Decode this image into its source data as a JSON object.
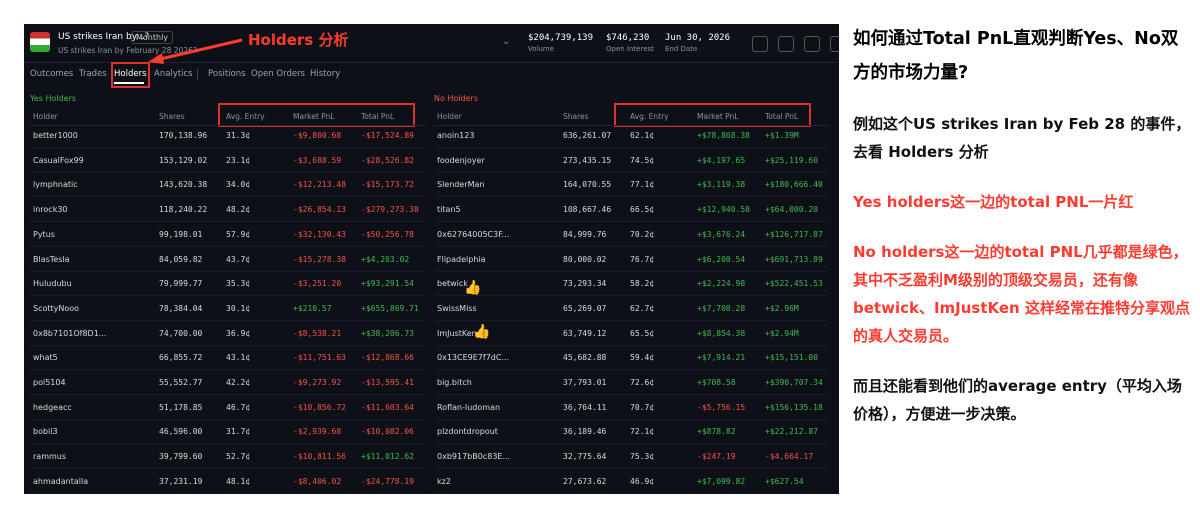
{
  "header": {
    "title": "US strikes Iran by...?",
    "badge": "Monthly",
    "subtitle": "US strikes Iran by February 28 2026?",
    "stats": [
      {
        "value": "$204,739,139",
        "label": "Volume"
      },
      {
        "value": "$746,230",
        "label": "Open Interest"
      },
      {
        "value": "Jun 30, 2026",
        "label": "End Date"
      }
    ]
  },
  "annotation": "Holders 分析",
  "tabs": [
    "Outcomes",
    "Trades",
    "Holders",
    "Analytics",
    "Positions",
    "Open Orders",
    "History"
  ],
  "yes_holders": {
    "title": "Yes Holders",
    "columns": [
      "Holder",
      "Shares",
      "Avg. Entry",
      "Market PnL",
      "Total PnL"
    ],
    "rows": [
      [
        "better1000",
        "170,138.96",
        "31.3¢",
        "-$9,800.68",
        "-$17,524.89"
      ],
      [
        "CasualFox99",
        "153,129.02",
        "23.1¢",
        "-$3,688.59",
        "-$28,526.82"
      ],
      [
        "lymphnatic",
        "143,620.38",
        "34.0¢",
        "-$12,213.48",
        "-$15,173.72"
      ],
      [
        "inrock30",
        "118,240.22",
        "48.2¢",
        "-$26,854.13",
        "-$279,273.38"
      ],
      [
        "Pytus",
        "99,198.01",
        "57.9¢",
        "-$32,130.43",
        "-$50,256.78"
      ],
      [
        "BlasTesla",
        "84,059.82",
        "43.7¢",
        "-$15,278.38",
        "+$4,203.02"
      ],
      [
        "Huludubu",
        "79,999.77",
        "35.3¢",
        "-$3,251.20",
        "+$93,291.54"
      ],
      [
        "ScottyNooo",
        "78,384.04",
        "30.1¢",
        "+$210.57",
        "+$655,869.71"
      ],
      [
        "0x8b7101Of8D1...",
        "74,700.00",
        "36.9¢",
        "-$8,538.21",
        "+$38,206.73"
      ],
      [
        "what5",
        "66,855.72",
        "43.1¢",
        "-$11,751.63",
        "-$12,868.66"
      ],
      [
        "pol5104",
        "55,552.77",
        "42.2¢",
        "-$9,273.92",
        "-$13,595.41"
      ],
      [
        "hedgeacc",
        "51,178.85",
        "46.7¢",
        "-$10,856.72",
        "-$11,603.64"
      ],
      [
        "bobil3",
        "46,596.00",
        "31.7¢",
        "-$2,939.68",
        "-$10,082.06"
      ],
      [
        "rammus",
        "39,799.60",
        "52.7¢",
        "-$10,811.56",
        "+$11,012.62"
      ],
      [
        "ahmadantalla",
        "37,231.19",
        "48.1¢",
        "-$8,406.02",
        "-$24,778.19"
      ]
    ]
  },
  "no_holders": {
    "title": "No Holders",
    "columns": [
      "Holder",
      "Shares",
      "Avg. Entry",
      "Market PnL",
      "Total PnL"
    ],
    "rows": [
      [
        "anoin123",
        "636,261.07",
        "62.1¢",
        "+$78,868.38",
        "+$1.39M"
      ],
      [
        "foodenjoyer",
        "273,435.15",
        "74.5¢",
        "+$4,197.65",
        "+$25,119.60"
      ],
      [
        "SlenderMan",
        "164,070.55",
        "77.1¢",
        "+$3,119.38",
        "+$180,666.40"
      ],
      [
        "titan5",
        "108,667.46",
        "66.5¢",
        "+$12,940.58",
        "+$64,000.20"
      ],
      [
        "0x62764005C3F...",
        "84,999.76",
        "70.2¢",
        "+$3,676.24",
        "+$126,717.87"
      ],
      [
        "Flipadelphia",
        "80,000.02",
        "76.7¢",
        "+$6,200.54",
        "+$691,713.89"
      ],
      [
        "betwick",
        "73,293.34",
        "58.2¢",
        "+$2,224.98",
        "+$522,451.53"
      ],
      [
        "SwissMiss",
        "65,269.07",
        "62.7¢",
        "+$7,708.28",
        "+$2.96M"
      ],
      [
        "ImJustKen",
        "63,749.12",
        "65.5¢",
        "+$8,854.38",
        "+$2.94M"
      ],
      [
        "0x13CE9E7f7dC...",
        "45,682.88",
        "59.4¢",
        "+$7,914.21",
        "+$15,151.00"
      ],
      [
        "big.bitch",
        "37,793.01",
        "72.6¢",
        "+$708.58",
        "+$390,707.34"
      ],
      [
        "Roflan-ludoman",
        "36,764.11",
        "70.7¢",
        "-$5,756.15",
        "+$156,135.18"
      ],
      [
        "plzdontdropout",
        "36,189.46",
        "72.1¢",
        "+$878.82",
        "+$22,212.87"
      ],
      [
        "0xb917bB0c83E...",
        "32,775.64",
        "75.3¢",
        "-$247.19",
        "-$4,664.17"
      ],
      [
        "kz2",
        "27,673.62",
        "46.9¢",
        "+$7,099.82",
        "+$627.54"
      ]
    ]
  },
  "notes": {
    "heading": "如何通过Total PnL直观判断Yes、No双方的市场力量?",
    "paragraphs": [
      "例如这个US strikes Iran by Feb 28 的事件，去看 Holders 分析",
      "Yes holders这一边的total PNL一片红",
      "No holders这一边的total PNL几乎都是绿色，其中不乏盈利M级别的顶级交易员，还有像 betwick、ImJustKen 这样经常在推特分享观点的真人交易员。",
      "而且还能看到他们的average entry（平均入场价格），方便进一步决策。"
    ]
  }
}
